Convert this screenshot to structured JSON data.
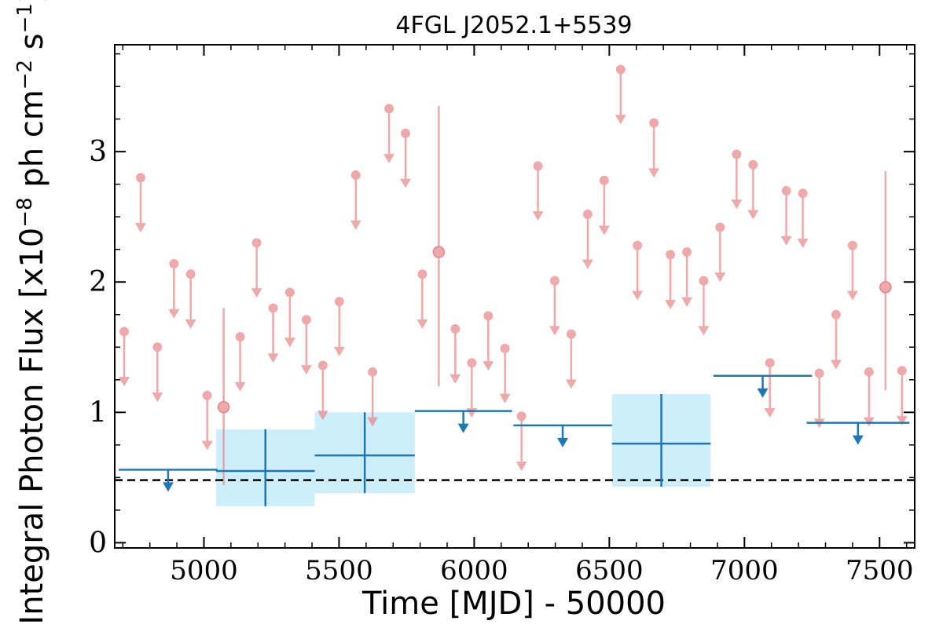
{
  "chart_data": {
    "type": "scatter",
    "title": "4FGL J2052.1+5539",
    "xlabel": "Time [MJD] - 50000",
    "ylabel": "Integral Photon Flux [x10^-8 ph cm^-2 s^-1]",
    "ylabel_parts": {
      "a": "Integral Photon Flux [x10",
      "exp1": "−8",
      "b": " ph cm",
      "exp2": "−2",
      "c": " s",
      "exp3": "−1",
      "d": "]"
    },
    "xlim": [
      4670,
      7630
    ],
    "ylim": [
      -0.04,
      3.82
    ],
    "xticks": [
      5000,
      5500,
      6000,
      6500,
      7000,
      7500
    ],
    "xtick_labels": [
      "5000",
      "5500",
      "6000",
      "6500",
      "7000",
      "7500"
    ],
    "yticks": [
      0,
      1,
      2,
      3
    ],
    "ytick_labels": [
      "0",
      "1",
      "2",
      "3"
    ],
    "baseline_flux": 0.48,
    "colors": {
      "short_bins": "#e8888c",
      "long_bins": "#1f77b4",
      "long_err_box": "#cdeefb",
      "baseline": "#000000"
    },
    "series": [
      {
        "kind": "monthly_upper_limits",
        "x": [
          4705,
          4766,
          4828,
          4889,
          4951,
          5012,
          5134,
          5195,
          5256,
          5318,
          5379,
          5440,
          5501,
          5562,
          5624,
          5685,
          5746,
          5808,
          5930,
          5991,
          6052,
          6114,
          6175,
          6236,
          6298,
          6359,
          6420,
          6481,
          6542,
          6604,
          6665,
          6726,
          6787,
          6849,
          6910,
          6971,
          7032,
          7094,
          7155,
          7216,
          7277,
          7339,
          7400,
          7461,
          7583
        ],
        "y": [
          1.62,
          2.8,
          1.5,
          2.14,
          2.06,
          1.13,
          1.58,
          2.3,
          1.8,
          1.92,
          1.71,
          1.36,
          1.85,
          2.82,
          1.31,
          3.33,
          3.14,
          2.06,
          1.64,
          1.38,
          1.74,
          1.49,
          0.97,
          2.89,
          2.01,
          1.6,
          2.52,
          2.78,
          3.63,
          2.28,
          3.22,
          2.21,
          2.23,
          2.01,
          2.42,
          2.98,
          2.9,
          1.38,
          2.7,
          2.68,
          1.3,
          1.75,
          2.28,
          1.31,
          1.32
        ]
      },
      {
        "kind": "monthly_detections",
        "x": [
          5073,
          5869,
          7522
        ],
        "y": [
          1.04,
          2.23,
          1.96
        ],
        "yerr_low": [
          0.44,
          1.2,
          1.17
        ],
        "yerr_high": [
          1.8,
          3.35,
          2.85
        ]
      },
      {
        "kind": "long_bin_upper_limits",
        "x_start": [
          4685,
          5780,
          6145,
          6885,
          7230
        ],
        "x_end": [
          5050,
          6140,
          6510,
          7250,
          7610
        ],
        "y": [
          0.56,
          1.01,
          0.9,
          1.28,
          0.92
        ]
      },
      {
        "kind": "long_bin_detections",
        "x_start": [
          5045,
          5410,
          6510
        ],
        "x_end": [
          5410,
          5780,
          6875
        ],
        "y": [
          0.55,
          0.67,
          0.76
        ],
        "yerr_low": [
          0.28,
          0.38,
          0.43
        ],
        "yerr_high": [
          0.87,
          1.0,
          1.14
        ]
      }
    ]
  }
}
